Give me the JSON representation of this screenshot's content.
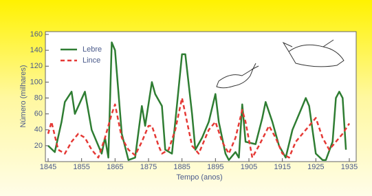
{
  "chart_data": {
    "type": "line",
    "xlabel": "Tempo (anos)",
    "ylabel": "Número (milhares)",
    "xlim": [
      1845,
      1935
    ],
    "xticks": [
      1845,
      1855,
      1865,
      1875,
      1885,
      1895,
      1905,
      1915,
      1925,
      1935
    ],
    "ylim": [
      0,
      160
    ],
    "yticks": [
      20,
      40,
      60,
      80,
      100,
      120,
      140,
      160
    ],
    "legend": "upper left",
    "series": [
      {
        "name": "Lebre",
        "color": "#2e7d32",
        "dash": false,
        "x": [
          1845,
          1847,
          1849,
          1850,
          1852,
          1853,
          1856,
          1858,
          1860,
          1861,
          1862,
          1863,
          1864,
          1865,
          1867,
          1869,
          1871,
          1873,
          1874,
          1876,
          1877,
          1879,
          1880,
          1882,
          1883,
          1885,
          1886,
          1888,
          1889,
          1891,
          1893,
          1895,
          1896,
          1898,
          1899,
          1901,
          1902,
          1903,
          1904,
          1907,
          1909,
          1910,
          1912,
          1914,
          1916,
          1918,
          1921,
          1922,
          1923,
          1925,
          1927,
          1928,
          1930,
          1931,
          1932,
          1933,
          1934
        ],
        "values": [
          20,
          12,
          50,
          75,
          88,
          60,
          88,
          40,
          20,
          10,
          30,
          5,
          150,
          140,
          35,
          2,
          5,
          70,
          45,
          100,
          85,
          70,
          15,
          10,
          50,
          135,
          135,
          60,
          15,
          30,
          50,
          85,
          50,
          10,
          2,
          12,
          5,
          72,
          25,
          22,
          55,
          75,
          50,
          20,
          5,
          40,
          70,
          80,
          70,
          10,
          2,
          2,
          25,
          80,
          88,
          80,
          15
        ]
      },
      {
        "name": "Lince",
        "color": "#e53935",
        "dash": true,
        "x": [
          1845,
          1846,
          1848,
          1850,
          1852,
          1854,
          1856,
          1858,
          1860,
          1862,
          1864,
          1865,
          1867,
          1869,
          1871,
          1873,
          1875,
          1876,
          1878,
          1879,
          1881,
          1883,
          1885,
          1887,
          1888,
          1890,
          1893,
          1895,
          1897,
          1899,
          1901,
          1903,
          1904,
          1906,
          1908,
          1911,
          1913,
          1915,
          1917,
          1919,
          1922,
          1925,
          1927,
          1929,
          1931,
          1933,
          1935
        ],
        "values": [
          35,
          50,
          15,
          10,
          25,
          35,
          30,
          15,
          5,
          30,
          60,
          72,
          30,
          15,
          8,
          25,
          45,
          45,
          20,
          10,
          15,
          40,
          80,
          40,
          20,
          10,
          40,
          50,
          25,
          10,
          30,
          65,
          50,
          5,
          20,
          45,
          30,
          10,
          5,
          25,
          40,
          55,
          30,
          15,
          25,
          35,
          48
        ]
      }
    ]
  }
}
